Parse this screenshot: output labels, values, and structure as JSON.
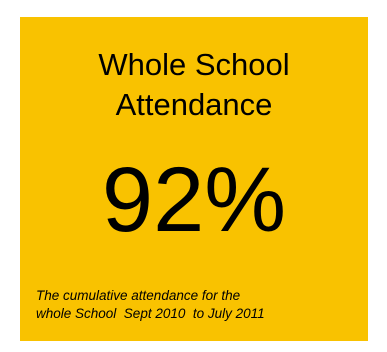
{
  "colors": {
    "card_background": "#F9C200",
    "text": "#000000"
  },
  "tile": {
    "title_line1": "Whole School",
    "title_line2": "Attendance",
    "value": "92%",
    "caption_line1": "The cumulative attendance for the",
    "caption_line2": "whole School  Sept 2010  to July 2011"
  }
}
